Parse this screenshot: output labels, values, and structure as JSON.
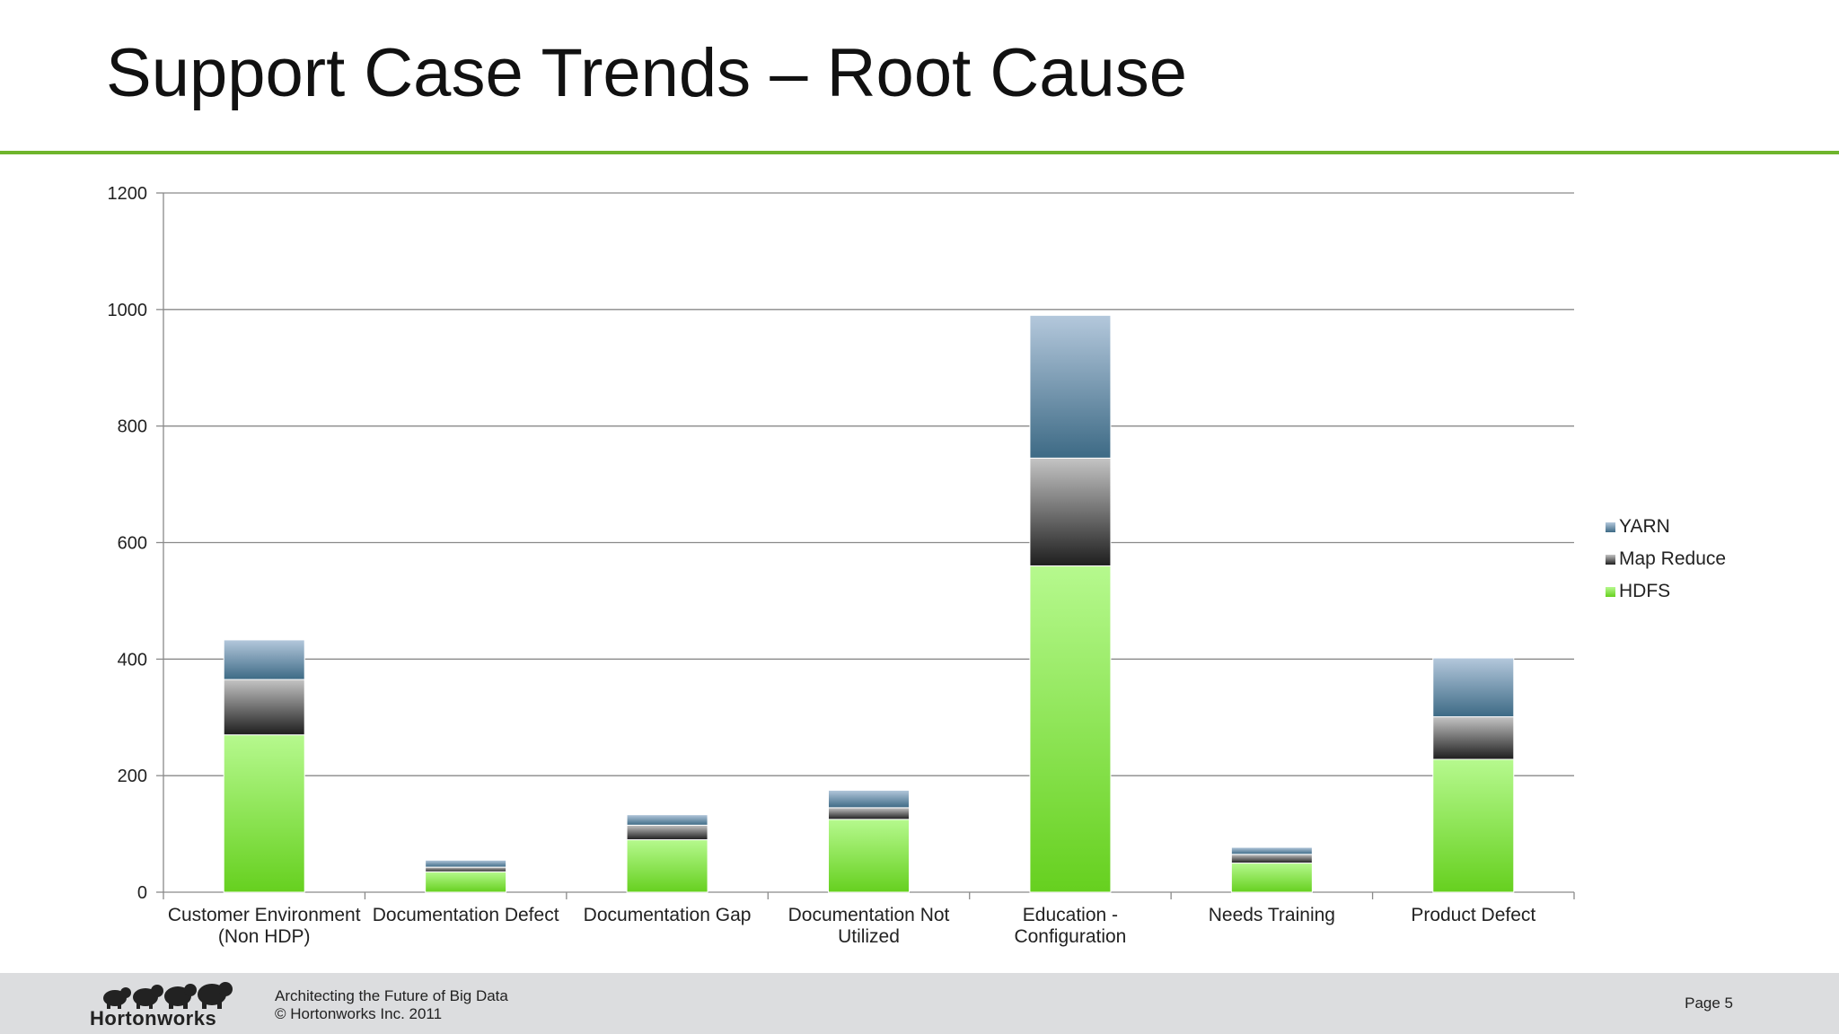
{
  "slide": {
    "title": "Support Case Trends – Root Cause"
  },
  "chart_data": {
    "type": "bar",
    "stacked": true,
    "categories": [
      [
        "Customer Environment",
        "(Non HDP)"
      ],
      [
        "Documentation Defect"
      ],
      [
        "Documentation Gap"
      ],
      [
        "Documentation Not",
        "Utilized"
      ],
      [
        "Education -",
        "Configuration"
      ],
      [
        "Needs Training"
      ],
      [
        "Product Defect"
      ]
    ],
    "series": [
      {
        "name": "HDFS",
        "values": [
          270,
          35,
          90,
          125,
          560,
          50,
          228
        ],
        "color": "#8ee05a"
      },
      {
        "name": "Map Reduce",
        "values": [
          95,
          8,
          25,
          20,
          185,
          15,
          73
        ],
        "color": "#555555"
      },
      {
        "name": "YARN",
        "values": [
          68,
          12,
          18,
          30,
          245,
          12,
          101
        ],
        "color": "#6a8fa8"
      }
    ],
    "ylim": [
      0,
      1200
    ],
    "yticks": [
      0,
      200,
      400,
      600,
      800,
      1000,
      1200
    ],
    "grid": true,
    "legend": "right"
  },
  "footer": {
    "logo_text": "Hortonworks",
    "line1": "Architecting the Future of Big Data",
    "line2": "© Hortonworks Inc. 2011",
    "page": "Page 5"
  }
}
